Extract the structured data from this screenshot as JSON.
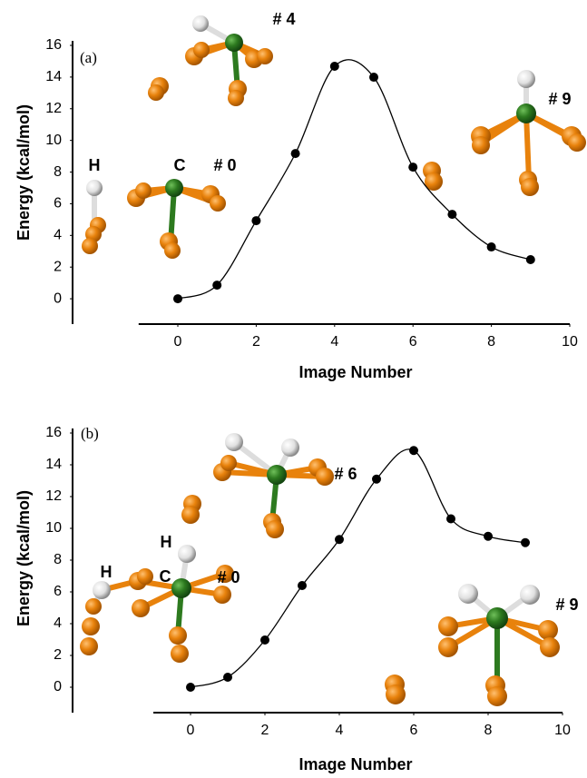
{
  "chart_data": [
    {
      "type": "line",
      "annotations": [
        "(a)",
        "H",
        "C",
        "# 0",
        "# 4",
        "# 9"
      ],
      "x_label": "Image Number",
      "y_label": "Energy (kcal/mol)",
      "x": [
        0,
        1,
        2,
        3,
        4,
        5,
        6,
        7,
        8,
        9
      ],
      "values": [
        0,
        0.86,
        4.93,
        9.17,
        14.68,
        13.99,
        8.31,
        5.33,
        3.27,
        2.47
      ],
      "color": "#000000",
      "smooth": true,
      "grid": false,
      "xlim": [
        -1,
        10
      ],
      "xticks": [
        0,
        2,
        4,
        6,
        8,
        10
      ],
      "ylim": [
        -1.6,
        16
      ],
      "yticks": [
        0,
        2,
        4,
        6,
        8,
        10,
        12,
        14,
        16
      ]
    },
    {
      "type": "line",
      "annotations": [
        "(b)",
        "H",
        "H",
        "C",
        "# 0",
        "# 6",
        "# 9"
      ],
      "x_label": "Image Number",
      "y_label": "Energy (kcal/mol)",
      "x": [
        0,
        1,
        2,
        3,
        4,
        5,
        6,
        7,
        8,
        9
      ],
      "values": [
        0,
        0.63,
        2.97,
        6.4,
        9.3,
        13.1,
        14.9,
        10.6,
        9.5,
        9.1
      ],
      "color": "#000000",
      "smooth": true,
      "grid": false,
      "xlim": [
        -1,
        10
      ],
      "xticks": [
        0,
        2,
        4,
        6,
        8,
        10
      ],
      "ylim": [
        -1.6,
        16
      ],
      "yticks": [
        0,
        2,
        4,
        6,
        8,
        10,
        12,
        14,
        16
      ]
    }
  ]
}
